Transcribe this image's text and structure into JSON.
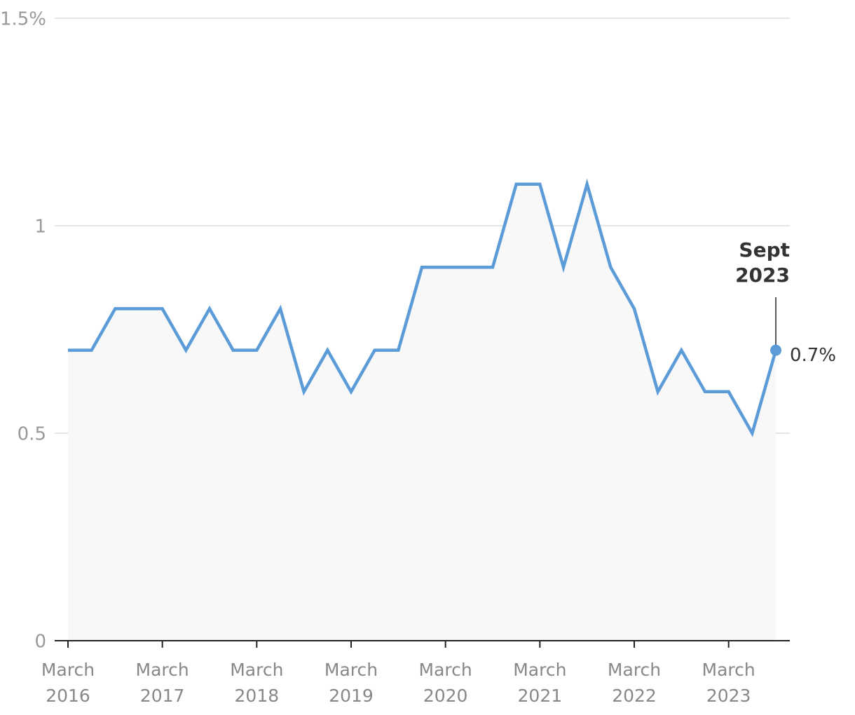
{
  "chart_data": {
    "type": "line",
    "categories": [
      "March 2016",
      null,
      null,
      null,
      "March 2017",
      null,
      null,
      null,
      "March 2018",
      null,
      null,
      null,
      "March 2019",
      null,
      null,
      null,
      "March 2020",
      null,
      null,
      null,
      "March 2021",
      null,
      null,
      null,
      "March 2022",
      null,
      null,
      null,
      "March 2023",
      null,
      "Sept 2023"
    ],
    "values": [
      0.7,
      0.7,
      0.8,
      0.8,
      0.8,
      0.7,
      0.8,
      0.7,
      0.7,
      0.8,
      0.6,
      0.7,
      0.6,
      0.7,
      0.7,
      0.9,
      0.9,
      0.9,
      0.9,
      1.1,
      1.1,
      0.9,
      1.1,
      0.9,
      0.8,
      0.6,
      0.7,
      0.6,
      0.6,
      0.5,
      0.7
    ],
    "value_labels": [
      null,
      null,
      null,
      null,
      null,
      null,
      null,
      null,
      null,
      null,
      null,
      null,
      null,
      null,
      null,
      null,
      null,
      null,
      null,
      null,
      null,
      null,
      null,
      null,
      null,
      null,
      null,
      null,
      null,
      null,
      "0.7%"
    ],
    "color": "#5b9bd8",
    "area_color": "#f8f8f8",
    "ylim": [
      0,
      1.5
    ],
    "yticks": [
      0,
      0.5,
      1,
      {
        "value": 1.5,
        "label": "1.5%"
      }
    ],
    "grid": true
  }
}
